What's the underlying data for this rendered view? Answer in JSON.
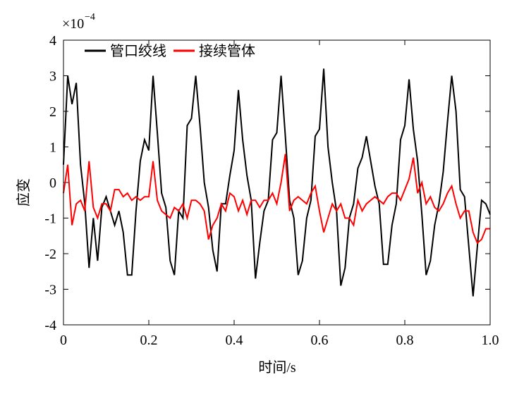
{
  "chart_data": {
    "type": "line",
    "y_label": "应变",
    "x_label": "时间/s",
    "y_scale_base": "×10",
    "y_scale_exponent": "−4",
    "xlim": [
      0,
      1
    ],
    "ylim": [
      -4,
      4
    ],
    "xticks": [
      0,
      0.2,
      0.4,
      0.6,
      0.8,
      {
        "value": 1,
        "label": "1.0"
      }
    ],
    "yticks": [
      -4,
      -3,
      -2,
      -1,
      0,
      1,
      2,
      3,
      4
    ],
    "legend": "top-left",
    "x": [
      0,
      0.01,
      0.02,
      0.03,
      0.04,
      0.05,
      0.06,
      0.07,
      0.08,
      0.09,
      0.1,
      0.11,
      0.12,
      0.13,
      0.14,
      0.15,
      0.16,
      0.17,
      0.18,
      0.19,
      0.2,
      0.21,
      0.22,
      0.23,
      0.24,
      0.25,
      0.26,
      0.27,
      0.28,
      0.29,
      0.3,
      0.31,
      0.32,
      0.33,
      0.34,
      0.35,
      0.36,
      0.37,
      0.38,
      0.39,
      0.4,
      0.41,
      0.42,
      0.43,
      0.44,
      0.45,
      0.46,
      0.47,
      0.48,
      0.49,
      0.5,
      0.51,
      0.52,
      0.53,
      0.54,
      0.55,
      0.56,
      0.57,
      0.58,
      0.59,
      0.6,
      0.61,
      0.62,
      0.63,
      0.64,
      0.65,
      0.66,
      0.67,
      0.68,
      0.69,
      0.7,
      0.71,
      0.72,
      0.73,
      0.74,
      0.75,
      0.76,
      0.77,
      0.78,
      0.79,
      0.8,
      0.81,
      0.82,
      0.83,
      0.84,
      0.85,
      0.86,
      0.87,
      0.88,
      0.89,
      0.9,
      0.91,
      0.92,
      0.93,
      0.94,
      0.95,
      0.96,
      0.97,
      0.98,
      0.99,
      1
    ],
    "series": [
      {
        "name": "管口绞线",
        "color": "#000000",
        "values": [
          0.5,
          3.0,
          2.2,
          2.8,
          0.5,
          -0.6,
          -2.4,
          -1.0,
          -2.2,
          -0.7,
          -0.4,
          -0.8,
          -1.2,
          -0.8,
          -1.4,
          -2.6,
          -2.6,
          -0.8,
          0.6,
          1.2,
          0.9,
          3.0,
          1.4,
          -0.3,
          -0.7,
          -2.2,
          -2.6,
          -0.8,
          -1.0,
          1.6,
          1.8,
          3.0,
          1.6,
          0.0,
          -0.7,
          -1.9,
          -2.5,
          -0.6,
          -0.6,
          0.2,
          0.9,
          2.6,
          1.2,
          0.2,
          -0.5,
          -2.7,
          -1.7,
          -0.8,
          -0.5,
          1.2,
          1.4,
          3.0,
          1.3,
          -0.5,
          -1.0,
          -2.6,
          -2.2,
          -1.0,
          -0.5,
          1.3,
          1.5,
          3.2,
          1.0,
          0.0,
          -0.8,
          -2.9,
          -2.4,
          -1.0,
          -0.6,
          0.4,
          0.7,
          1.3,
          0.6,
          -0.1,
          -0.6,
          -2.3,
          -2.3,
          -1.2,
          -0.6,
          1.2,
          1.6,
          2.9,
          1.5,
          0.6,
          -0.9,
          -2.6,
          -2.2,
          -1.2,
          -0.6,
          0.3,
          1.7,
          3.0,
          2.0,
          -0.2,
          -0.4,
          -1.8,
          -3.2,
          -1.8,
          -0.5,
          -0.6,
          -0.9
        ]
      },
      {
        "name": "接续管体",
        "color": "#ff0000",
        "values": [
          -0.3,
          0.5,
          -1.2,
          -0.6,
          -0.5,
          -0.8,
          0.6,
          -0.7,
          -1.0,
          -0.6,
          -0.6,
          -0.8,
          -0.2,
          -0.2,
          -0.4,
          -0.3,
          -0.5,
          -0.4,
          -0.5,
          -0.4,
          -0.4,
          0.6,
          -0.5,
          -0.8,
          -0.9,
          -1.0,
          -0.7,
          -0.8,
          -0.6,
          -1.0,
          -0.5,
          -0.5,
          -0.6,
          -0.8,
          -1.6,
          -1.2,
          -1.0,
          -0.6,
          -0.8,
          -0.3,
          -0.4,
          -0.8,
          -0.5,
          -0.9,
          -0.5,
          -0.5,
          -0.7,
          -0.5,
          -0.5,
          -0.3,
          -0.6,
          0.0,
          0.8,
          -0.8,
          -0.5,
          -0.4,
          -0.5,
          -0.6,
          -0.3,
          -0.1,
          -0.8,
          -1.4,
          -1.0,
          -0.6,
          -0.8,
          -0.6,
          -1.0,
          -1.0,
          -1.2,
          -0.5,
          -0.8,
          -0.6,
          -0.5,
          -0.4,
          -0.5,
          -0.6,
          -0.4,
          -0.3,
          -0.3,
          -0.5,
          -0.2,
          0.1,
          0.7,
          -0.3,
          0.0,
          -0.6,
          -0.4,
          -0.7,
          -0.8,
          -0.6,
          -0.3,
          -0.1,
          -0.6,
          -1.0,
          -0.8,
          -0.8,
          -1.4,
          -1.7,
          -1.6,
          -1.3,
          -1.3
        ]
      }
    ]
  }
}
